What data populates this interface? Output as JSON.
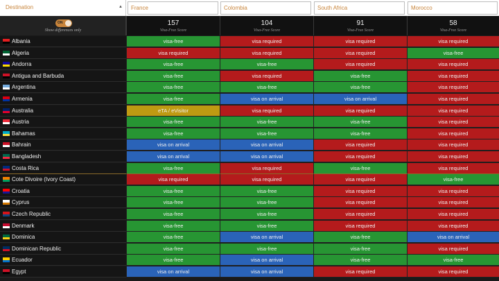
{
  "header": {
    "destination_label": "Destination",
    "sort_icon": "caret-up-icon",
    "countries": [
      "France",
      "Colombia",
      "South Africa",
      "Morocco"
    ]
  },
  "toggle": {
    "state_label": "ON",
    "text": "Show differences only"
  },
  "scores": [
    {
      "value": "157",
      "caption": "Visa-Free Score"
    },
    {
      "value": "104",
      "caption": "Visa-Free Score"
    },
    {
      "value": "91",
      "caption": "Visa-Free Score"
    },
    {
      "value": "58",
      "caption": "Visa-Free Score"
    }
  ],
  "status_colors": {
    "visa-free": "#279533",
    "visa required": "#b41b1c",
    "visa on arrival": "#2a63b8",
    "eTA / eVisitor": "#bf9a12"
  },
  "rows": [
    {
      "name": "Albania",
      "flag": [
        "#e41e20",
        "#000000"
      ],
      "cells": [
        "visa-free",
        "visa required",
        "visa required",
        "visa required"
      ]
    },
    {
      "name": "Algeria",
      "flag": [
        "#006233",
        "#ffffff"
      ],
      "cells": [
        "visa required",
        "visa required",
        "visa required",
        "visa-free"
      ]
    },
    {
      "name": "Andorra",
      "flag": [
        "#10069f",
        "#fedd00"
      ],
      "cells": [
        "visa-free",
        "visa-free",
        "visa required",
        "visa required"
      ]
    },
    {
      "name": "Antigua and Barbuda",
      "flag": [
        "#ce1126",
        "#000000"
      ],
      "cells": [
        "visa-free",
        "visa required",
        "visa-free",
        "visa required"
      ]
    },
    {
      "name": "Argentina",
      "flag": [
        "#74acdf",
        "#ffffff"
      ],
      "cells": [
        "visa-free",
        "visa-free",
        "visa-free",
        "visa required"
      ]
    },
    {
      "name": "Armenia",
      "flag": [
        "#d90012",
        "#0033a0"
      ],
      "cells": [
        "visa-free",
        "visa on arrival",
        "visa on arrival",
        "visa required"
      ]
    },
    {
      "name": "Australia",
      "flag": [
        "#012169",
        "#e4002b"
      ],
      "cells": [
        "eTA / eVisitor",
        "visa required",
        "visa required",
        "visa required"
      ]
    },
    {
      "name": "Austria",
      "flag": [
        "#ed2939",
        "#ffffff"
      ],
      "cells": [
        "visa-free",
        "visa-free",
        "visa-free",
        "visa required"
      ]
    },
    {
      "name": "Bahamas",
      "flag": [
        "#00abc9",
        "#fae042"
      ],
      "cells": [
        "visa-free",
        "visa-free",
        "visa-free",
        "visa required"
      ]
    },
    {
      "name": "Bahrain",
      "flag": [
        "#ce1126",
        "#ffffff"
      ],
      "cells": [
        "visa on arrival",
        "visa on arrival",
        "visa required",
        "visa required"
      ]
    },
    {
      "name": "Bangladesh",
      "flag": [
        "#006a4e",
        "#f42a41"
      ],
      "cells": [
        "visa on arrival",
        "visa on arrival",
        "visa required",
        "visa required"
      ]
    },
    {
      "name": "Costa Rica",
      "flag": [
        "#002b7f",
        "#ce1126"
      ],
      "cells": [
        "visa-free",
        "visa required",
        "visa-free",
        "visa required"
      ]
    },
    {
      "name": "Cote Divoire (Ivory Coast)",
      "flag": [
        "#f77f00",
        "#009e60"
      ],
      "cells": [
        "visa required",
        "visa required",
        "visa required",
        "visa-free"
      ]
    },
    {
      "name": "Croatia",
      "flag": [
        "#ff0000",
        "#171796"
      ],
      "cells": [
        "visa-free",
        "visa-free",
        "visa required",
        "visa required"
      ]
    },
    {
      "name": "Cyprus",
      "flag": [
        "#ffffff",
        "#d57800"
      ],
      "cells": [
        "visa-free",
        "visa-free",
        "visa required",
        "visa required"
      ]
    },
    {
      "name": "Czech Republic",
      "flag": [
        "#d7141a",
        "#11457e"
      ],
      "cells": [
        "visa-free",
        "visa-free",
        "visa required",
        "visa required"
      ]
    },
    {
      "name": "Denmark",
      "flag": [
        "#c60c30",
        "#ffffff"
      ],
      "cells": [
        "visa-free",
        "visa-free",
        "visa required",
        "visa required"
      ]
    },
    {
      "name": "Dominica",
      "flag": [
        "#006b3f",
        "#fcd116"
      ],
      "cells": [
        "visa-free",
        "visa on arrival",
        "visa-free",
        "visa on arrival"
      ]
    },
    {
      "name": "Dominican Republic",
      "flag": [
        "#002d62",
        "#ce1126"
      ],
      "cells": [
        "visa-free",
        "visa-free",
        "visa-free",
        "visa required"
      ]
    },
    {
      "name": "Ecuador",
      "flag": [
        "#ffd100",
        "#0072ce"
      ],
      "cells": [
        "visa-free",
        "visa on arrival",
        "visa-free",
        "visa-free"
      ]
    },
    {
      "name": "Egypt",
      "flag": [
        "#ce1126",
        "#000000"
      ],
      "cells": [
        "visa on arrival",
        "visa on arrival",
        "visa required",
        "visa required"
      ]
    }
  ]
}
